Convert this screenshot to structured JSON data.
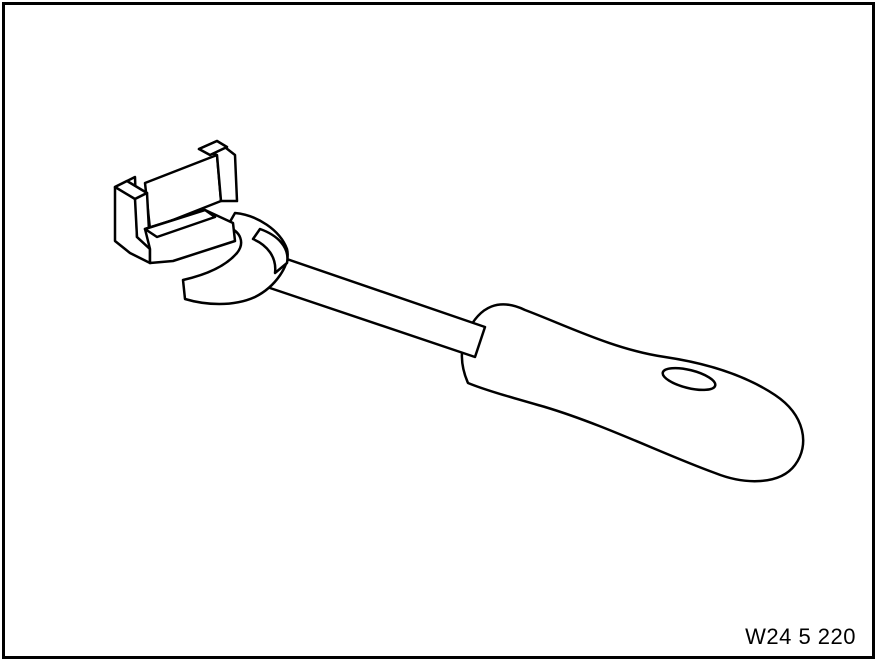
{
  "figure": {
    "id_label": "W24 5 220",
    "subject": "wrench-tool",
    "line_color": "#000000",
    "fill_color": "#ffffff"
  }
}
